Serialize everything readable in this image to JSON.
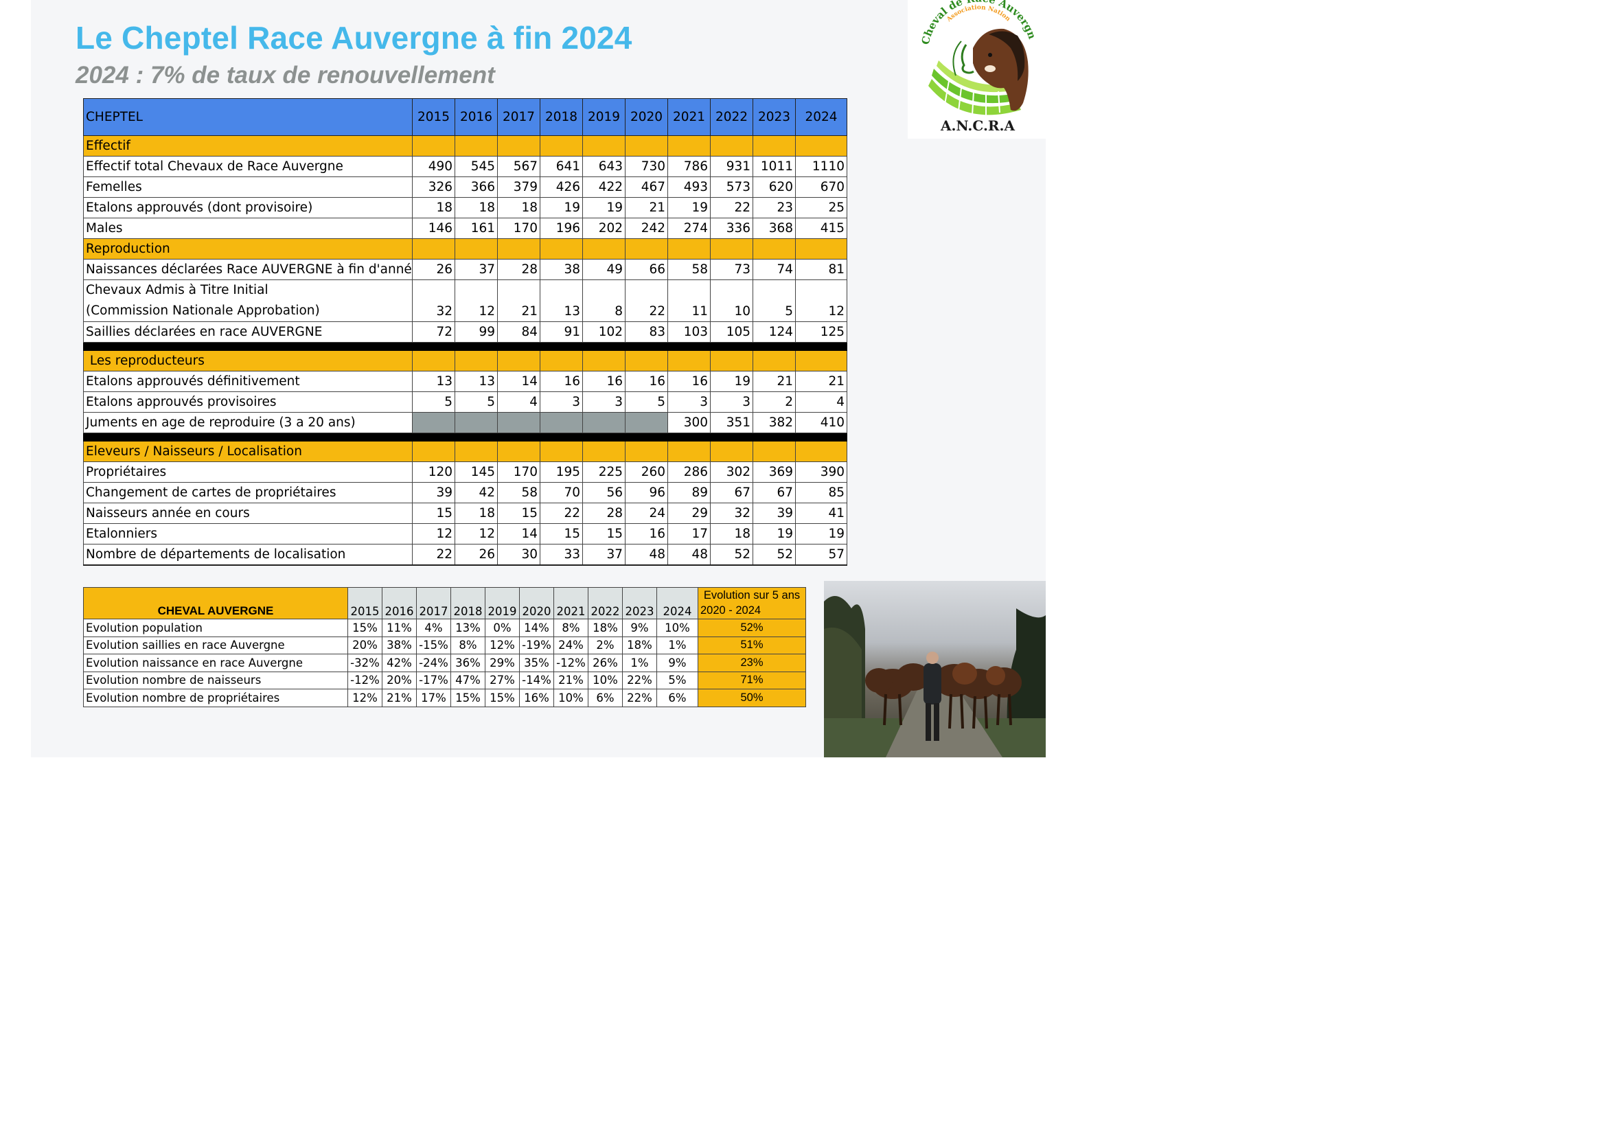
{
  "title": "Le Cheptel Race Auvergne à fin 2024",
  "subtitle": "2024 : 7% de taux de renouvellement",
  "logo": {
    "arc_text": "Association Nationale du",
    "arc_text_2": "Cheval de Race Auvergne",
    "acronym": "A.N.C.R.A"
  },
  "main_table": {
    "header_label": "CHEPTEL",
    "years": [
      "2015",
      "2016",
      "2017",
      "2018",
      "2019",
      "2020",
      "2021",
      "2022",
      "2023",
      "2024"
    ],
    "sections": {
      "effectif": "Effectif",
      "reproduction": "Reproduction",
      "reproducteurs": " Les reproducteurs",
      "eleveurs": "Eleveurs / Naisseurs / Localisation"
    },
    "rows": {
      "effectif_total": {
        "label": "Effectif total Chevaux de Race Auvergne",
        "values": [
          "490",
          "545",
          "567",
          "641",
          "643",
          "730",
          "786",
          "931",
          "1011",
          "1110"
        ]
      },
      "femelles": {
        "label": "Femelles",
        "values": [
          "326",
          "366",
          "379",
          "426",
          "422",
          "467",
          "493",
          "573",
          "620",
          "670"
        ]
      },
      "etalons_approuves": {
        "label": "Etalons approuvés (dont provisoire)",
        "values": [
          "18",
          "18",
          "18",
          "19",
          "19",
          "21",
          "19",
          "22",
          "23",
          "25"
        ]
      },
      "males": {
        "label": "Males",
        "values": [
          "146",
          "161",
          "170",
          "196",
          "202",
          "242",
          "274",
          "336",
          "368",
          "415"
        ]
      },
      "naissances": {
        "label": "Naissances déclarées Race AUVERGNE à fin d'année",
        "values": [
          "26",
          "37",
          "28",
          "38",
          "49",
          "66",
          "58",
          "73",
          "74",
          "81"
        ]
      },
      "admis": {
        "label_line1": "Chevaux Admis à Titre Initial",
        "label_line2": "(Commission Nationale Approbation)",
        "values": [
          "32",
          "12",
          "21",
          "13",
          "8",
          "22",
          "11",
          "10",
          "5",
          "12"
        ]
      },
      "saillies": {
        "label": "Saillies déclarées en race AUVERGNE",
        "values": [
          "72",
          "99",
          "84",
          "91",
          "102",
          "83",
          "103",
          "105",
          "124",
          "125"
        ]
      },
      "etalons_def": {
        "label": "Etalons approuvés définitivement",
        "values": [
          "13",
          "13",
          "14",
          "16",
          "16",
          "16",
          "16",
          "19",
          "21",
          "21"
        ]
      },
      "etalons_prov": {
        "label": "Etalons approuvés provisoires",
        "values": [
          "5",
          "5",
          "4",
          "3",
          "3",
          "5",
          "3",
          "3",
          "2",
          "4"
        ]
      },
      "juments": {
        "label": "Juments en age de reproduire (3 a 20 ans)",
        "values": [
          "",
          "",
          "",
          "",
          "",
          "",
          "300",
          "351",
          "382",
          "410"
        ]
      },
      "proprietaires": {
        "label": "Propriétaires",
        "values": [
          "120",
          "145",
          "170",
          "195",
          "225",
          "260",
          "286",
          "302",
          "369",
          "390"
        ]
      },
      "changement": {
        "label": "Changement de cartes de propriétaires",
        "values": [
          "39",
          "42",
          "58",
          "70",
          "56",
          "96",
          "89",
          "67",
          "67",
          "85"
        ]
      },
      "naisseurs": {
        "label": "Naisseurs année en cours",
        "values": [
          "15",
          "18",
          "15",
          "22",
          "28",
          "24",
          "29",
          "32",
          "39",
          "41"
        ]
      },
      "etalonniers": {
        "label": "Etalonniers",
        "values": [
          "12",
          "12",
          "14",
          "15",
          "15",
          "16",
          "17",
          "18",
          "19",
          "19"
        ]
      },
      "departements": {
        "label": "Nombre de départements de localisation",
        "values": [
          "22",
          "26",
          "30",
          "33",
          "37",
          "48",
          "48",
          "52",
          "52",
          "57"
        ]
      }
    }
  },
  "evo_table": {
    "header_label": "CHEVAL AUVERGNE",
    "years": [
      "2015",
      "2016",
      "2017",
      "2018",
      "2019",
      "2020",
      "2021",
      "2022",
      "2023",
      "2024"
    ],
    "five_year_line1": "Evolution sur 5 ans",
    "five_year_line2": "2020 - 2024",
    "rows": [
      {
        "label": "Evolution population",
        "values": [
          "15%",
          "11%",
          "4%",
          "13%",
          "0%",
          "14%",
          "8%",
          "18%",
          "9%",
          "10%"
        ],
        "five": "52%"
      },
      {
        "label": "Evolution saillies en race Auvergne",
        "values": [
          "20%",
          "38%",
          "-15%",
          "8%",
          "12%",
          "-19%",
          "24%",
          "2%",
          "18%",
          "1%"
        ],
        "five": "51%"
      },
      {
        "label": "Evolution naissance en race Auvergne",
        "values": [
          "-32%",
          "42%",
          "-24%",
          "36%",
          "29%",
          "35%",
          "-12%",
          "26%",
          "1%",
          "9%"
        ],
        "five": "23%"
      },
      {
        "label": "Evolution nombre de naisseurs",
        "values": [
          "-12%",
          "20%",
          "-17%",
          "47%",
          "27%",
          "-14%",
          "21%",
          "10%",
          "22%",
          "5%"
        ],
        "five": "71%"
      },
      {
        "label": "Evolution nombre de propriétaires",
        "values": [
          "12%",
          "21%",
          "17%",
          "15%",
          "15%",
          "16%",
          "10%",
          "6%",
          "22%",
          "6%"
        ],
        "five": "50%"
      }
    ]
  },
  "colors": {
    "title_blue": "#45b8ea",
    "subtitle_gray": "#8c9190",
    "header_blue": "#4a86e8",
    "section_orange": "#f6b80f",
    "empty_gray": "#95a0a1"
  }
}
